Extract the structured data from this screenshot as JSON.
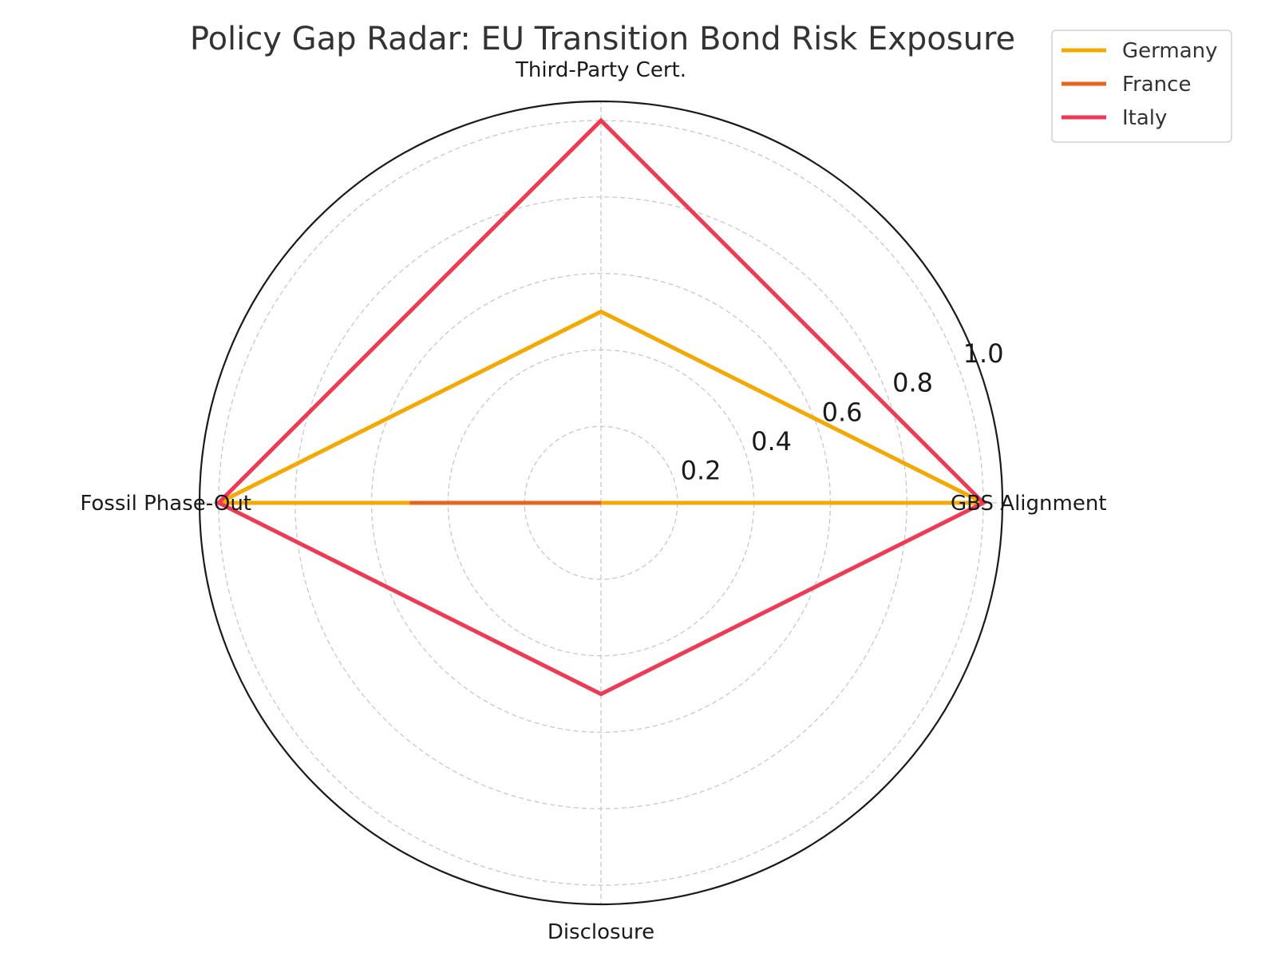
{
  "chart_data": {
    "type": "radar",
    "title": "Policy Gap Radar: EU Transition Bond Risk Exposure",
    "axes": [
      "GBS Alignment",
      "Third-Party Cert.",
      "Fossil Phase-Out",
      "Disclosure"
    ],
    "radial_range": [
      0,
      1.05
    ],
    "radial_ticks": [
      0.2,
      0.4,
      0.6,
      0.8,
      1.0
    ],
    "radial_tick_labels": [
      "0.2",
      "0.4",
      "0.6",
      "0.8",
      "1.0"
    ],
    "grid": true,
    "legend_position": "top-right",
    "series": [
      {
        "name": "Germany",
        "color": "#F5A800",
        "values": [
          1.0,
          0.5,
          1.0,
          0.0
        ]
      },
      {
        "name": "France",
        "color": "#E8641E",
        "values": [
          0.0,
          0.0,
          0.5,
          0.0
        ]
      },
      {
        "name": "Italy",
        "color": "#F03A55",
        "values": [
          1.0,
          1.0,
          1.0,
          0.5
        ]
      }
    ]
  }
}
